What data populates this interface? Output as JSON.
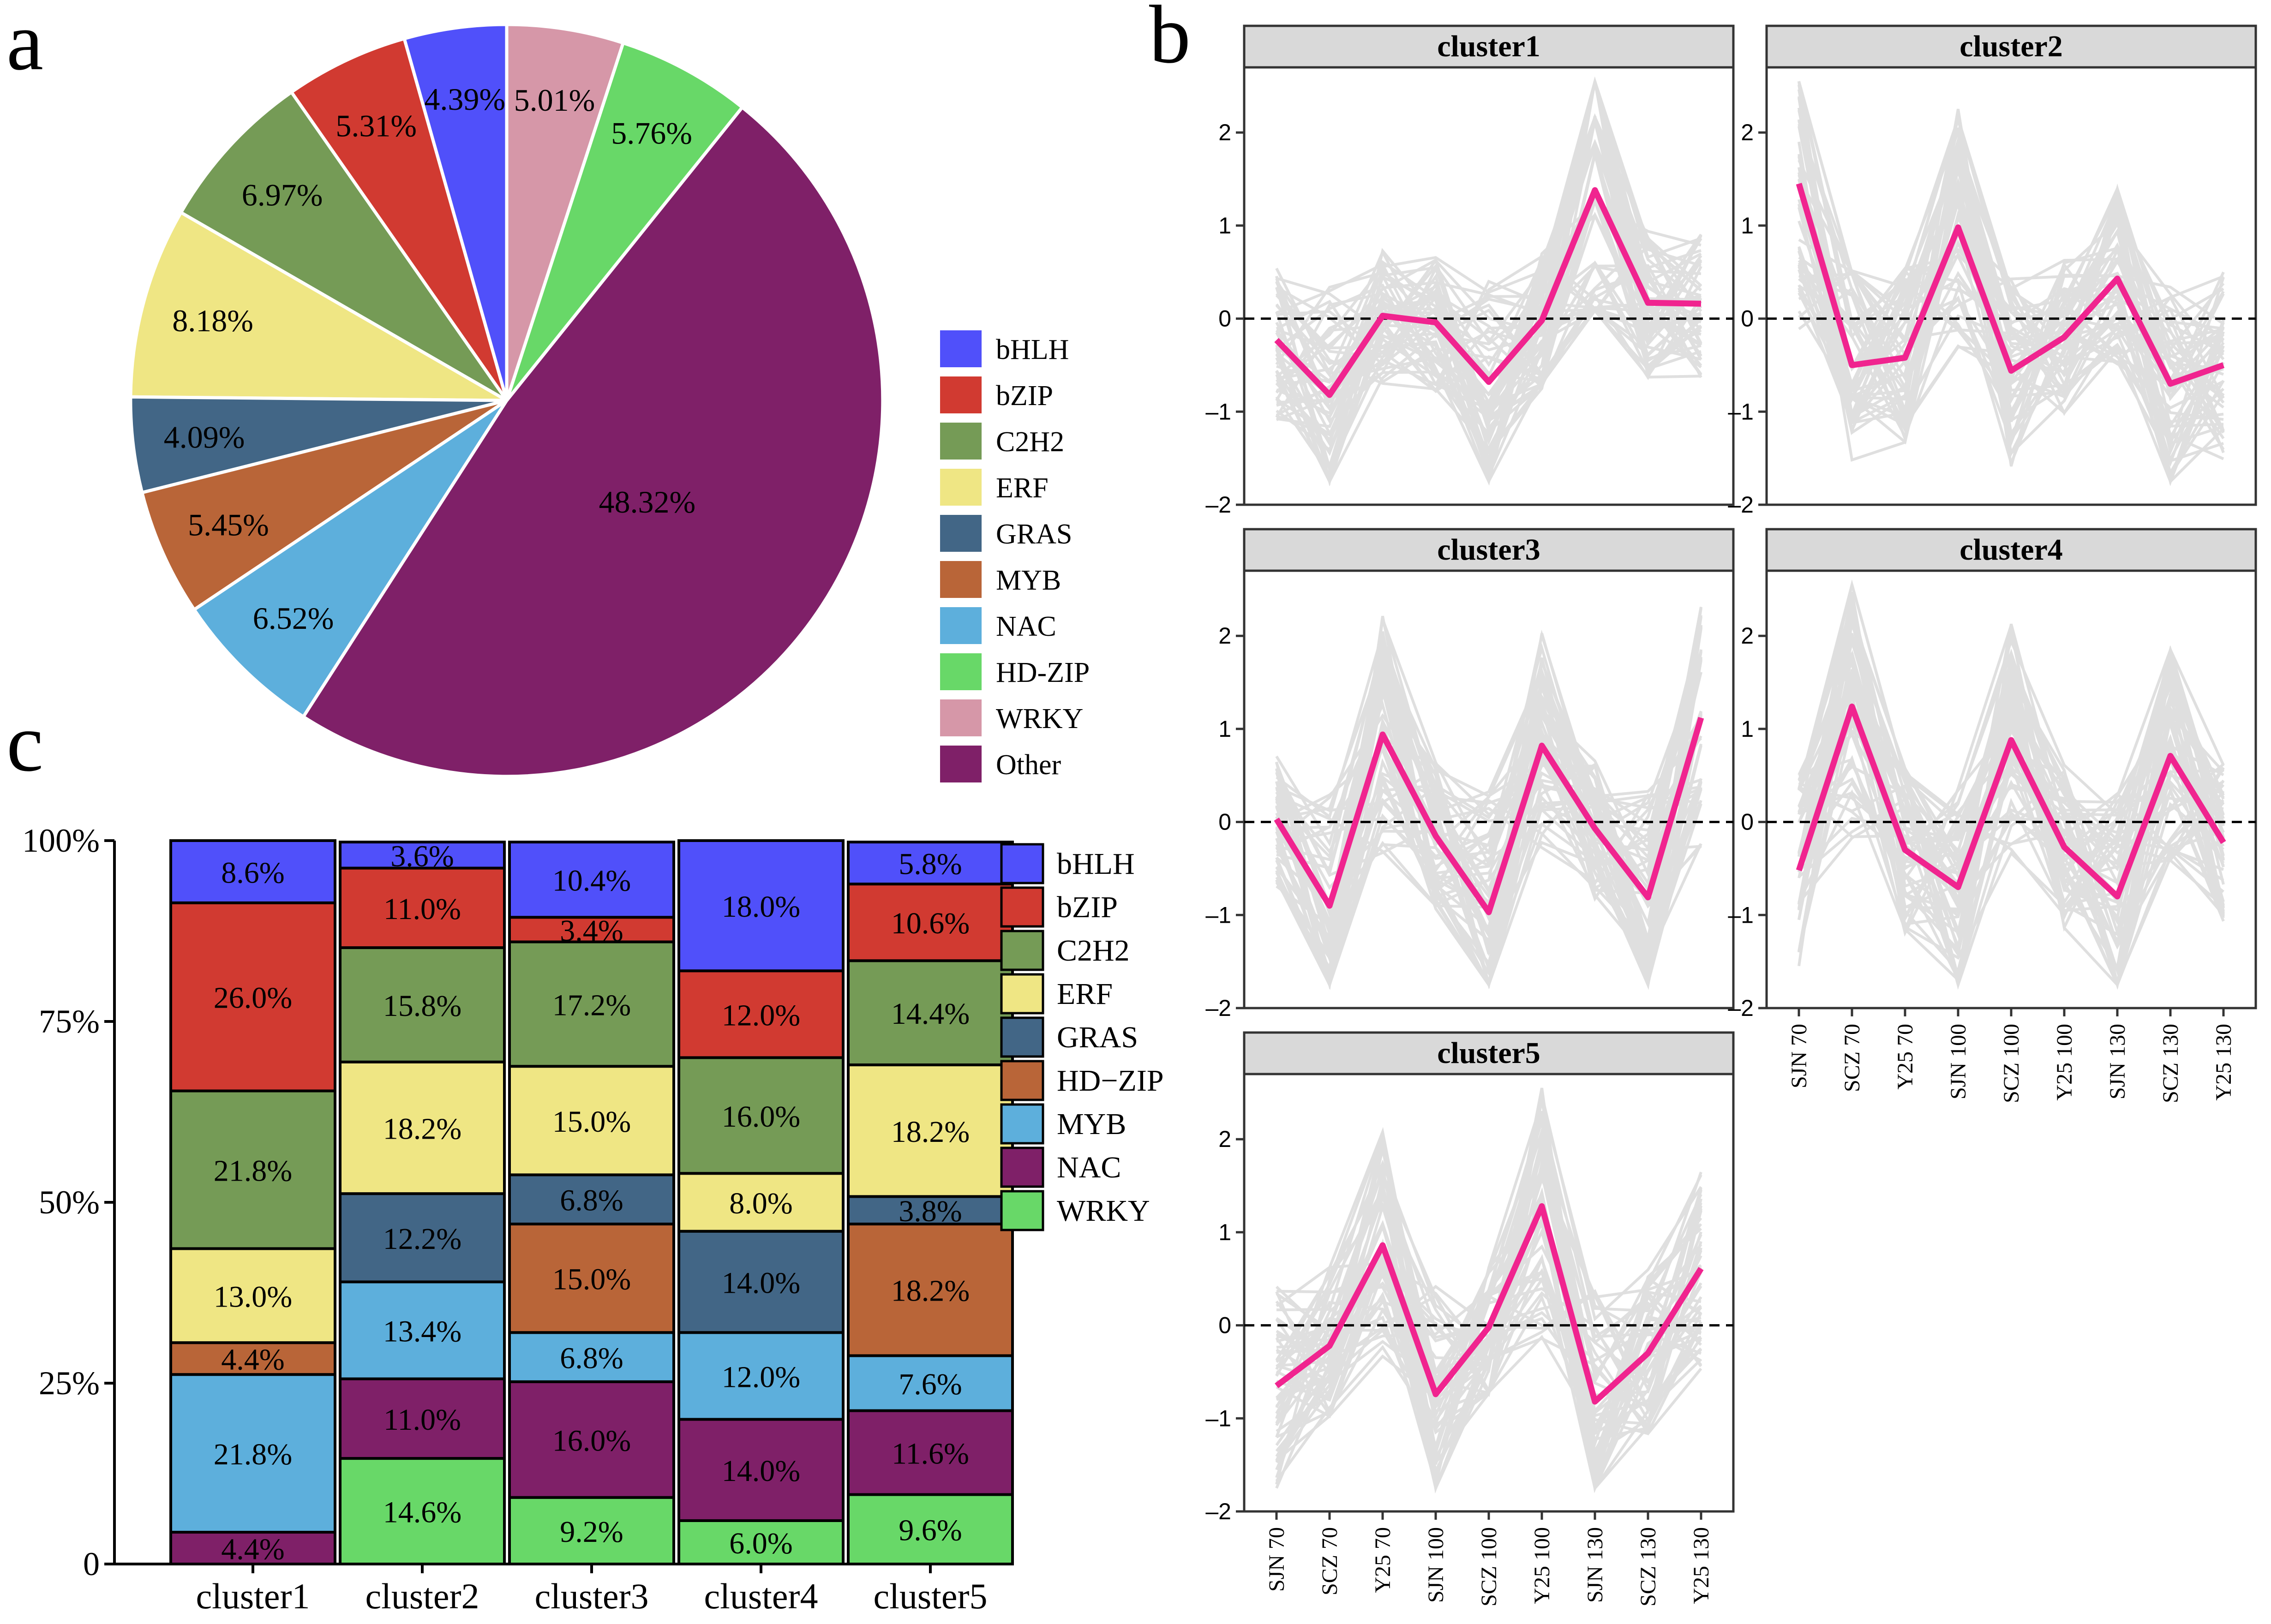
{
  "panels": {
    "a": "a",
    "b": "b",
    "c": "c"
  },
  "colors": {
    "bHLH": "#5050fa",
    "bZIP": "#d13a31",
    "C2H2": "#759b56",
    "ERF": "#efe684",
    "GRAS": "#426686",
    "MYB": "#b96538",
    "NAC": "#5dafdc",
    "HD-ZIP": "#68d868",
    "WRKY": "#d697a8",
    "Other": "#7f2068",
    "NAC_c": "#7f2068",
    "MYB_c": "#5dafdc",
    "HDZIP_c": "#b96538",
    "WRKY_c": "#68d868",
    "trend": "#f0248f",
    "lines": "#dcdcdc",
    "strip": "#d9d9d9"
  },
  "chart_data": [
    {
      "id": "pie",
      "type": "pie",
      "title": "",
      "slices": [
        {
          "label": "bHLH",
          "value": 4.39,
          "text": "4.39%"
        },
        {
          "label": "bZIP",
          "value": 5.31,
          "text": "5.31%"
        },
        {
          "label": "C2H2",
          "value": 6.97,
          "text": "6.97%"
        },
        {
          "label": "ERF",
          "value": 8.18,
          "text": "8.18%"
        },
        {
          "label": "GRAS",
          "value": 4.09,
          "text": "4.09%"
        },
        {
          "label": "MYB",
          "value": 5.45,
          "text": "5.45%"
        },
        {
          "label": "NAC",
          "value": 6.52,
          "text": "6.52%"
        },
        {
          "label": "Other",
          "value": 48.32,
          "text": "48.32%"
        },
        {
          "label": "HD-ZIP",
          "value": 5.76,
          "text": "5.76%"
        },
        {
          "label": "WRKY",
          "value": 5.01,
          "text": "5.01%"
        }
      ],
      "legend": [
        "bHLH",
        "bZIP",
        "C2H2",
        "ERF",
        "GRAS",
        "MYB",
        "NAC",
        "HD-ZIP",
        "WRKY",
        "Other"
      ],
      "legend_position": "right"
    },
    {
      "id": "clusters",
      "type": "line",
      "x": [
        "SJN 70",
        "SCZ 70",
        "Y25 70",
        "SJN 100",
        "SCZ 100",
        "Y25 100",
        "SJN 130",
        "SCZ 130",
        "Y25 130"
      ],
      "ylim": [
        -2,
        2.7
      ],
      "yticks": [
        -2,
        -1,
        0,
        1,
        2
      ],
      "reference_line": 0,
      "panels": [
        {
          "title": "cluster1",
          "mean": [
            -0.23,
            -0.82,
            0.03,
            -0.04,
            -0.68,
            -0.02,
            1.38,
            0.17,
            0.16
          ]
        },
        {
          "title": "cluster2",
          "mean": [
            1.45,
            -0.5,
            -0.42,
            0.98,
            -0.56,
            -0.2,
            0.43,
            -0.7,
            -0.5
          ]
        },
        {
          "title": "cluster3",
          "mean": [
            0.03,
            -0.9,
            0.94,
            -0.15,
            -0.97,
            0.82,
            -0.07,
            -0.81,
            1.12
          ]
        },
        {
          "title": "cluster4",
          "mean": [
            -0.52,
            1.24,
            -0.3,
            -0.7,
            0.88,
            -0.27,
            -0.8,
            0.71,
            -0.22
          ]
        },
        {
          "title": "cluster5",
          "mean": [
            -0.65,
            -0.22,
            0.86,
            -0.74,
            -0.02,
            1.28,
            -0.82,
            -0.3,
            0.61
          ]
        }
      ]
    },
    {
      "id": "stacked",
      "type": "bar",
      "stacked": true,
      "categories": [
        "cluster1",
        "cluster2",
        "cluster3",
        "cluster4",
        "cluster5"
      ],
      "yticks": [
        "0",
        "25%",
        "50%",
        "75%",
        "100%"
      ],
      "ylim": [
        0,
        100
      ],
      "series": [
        {
          "name": "WRKY",
          "values": [
            0,
            14.6,
            9.2,
            6.0,
            9.6
          ],
          "labels": [
            "",
            "14.6%",
            "9.2%",
            "6.0%",
            "9.6%"
          ]
        },
        {
          "name": "NAC",
          "values": [
            4.4,
            11.0,
            16.0,
            14.0,
            11.6
          ],
          "labels": [
            "4.4%",
            "11.0%",
            "16.0%",
            "14.0%",
            "11.6%"
          ]
        },
        {
          "name": "MYB",
          "values": [
            21.8,
            13.4,
            6.8,
            12.0,
            7.6
          ],
          "labels": [
            "21.8%",
            "13.4%",
            "6.8%",
            "12.0%",
            "7.6%"
          ]
        },
        {
          "name": "HD−ZIP",
          "values": [
            4.4,
            0,
            15.0,
            0,
            18.2
          ],
          "labels": [
            "4.4%",
            "",
            "15.0%",
            "",
            "18.2%"
          ]
        },
        {
          "name": "GRAS",
          "values": [
            0,
            12.2,
            6.8,
            14.0,
            3.8
          ],
          "labels": [
            "",
            "12.2%",
            "6.8%",
            "14.0%",
            "3.8%"
          ]
        },
        {
          "name": "ERF",
          "values": [
            13.0,
            18.2,
            15.0,
            8.0,
            18.2
          ],
          "labels": [
            "13.0%",
            "18.2%",
            "15.0%",
            "8.0%",
            "18.2%"
          ]
        },
        {
          "name": "C2H2",
          "values": [
            21.8,
            15.8,
            17.2,
            16.0,
            14.4
          ],
          "labels": [
            "21.8%",
            "15.8%",
            "17.2%",
            "16.0%",
            "14.4%"
          ]
        },
        {
          "name": "bZIP",
          "values": [
            26.0,
            11.0,
            3.4,
            12.0,
            10.6
          ],
          "labels": [
            "26.0%",
            "11.0%",
            "3.4%",
            "12.0%",
            "10.6%"
          ]
        },
        {
          "name": "bHLH",
          "values": [
            8.6,
            3.6,
            10.4,
            18.0,
            5.8
          ],
          "labels": [
            "8.6%",
            "3.6%",
            "10.4%",
            "18.0%",
            "5.8%"
          ]
        }
      ],
      "legend": [
        "bHLH",
        "bZIP",
        "C2H2",
        "ERF",
        "GRAS",
        "HD−ZIP",
        "MYB",
        "NAC",
        "WRKY"
      ],
      "legend_position": "right"
    }
  ]
}
